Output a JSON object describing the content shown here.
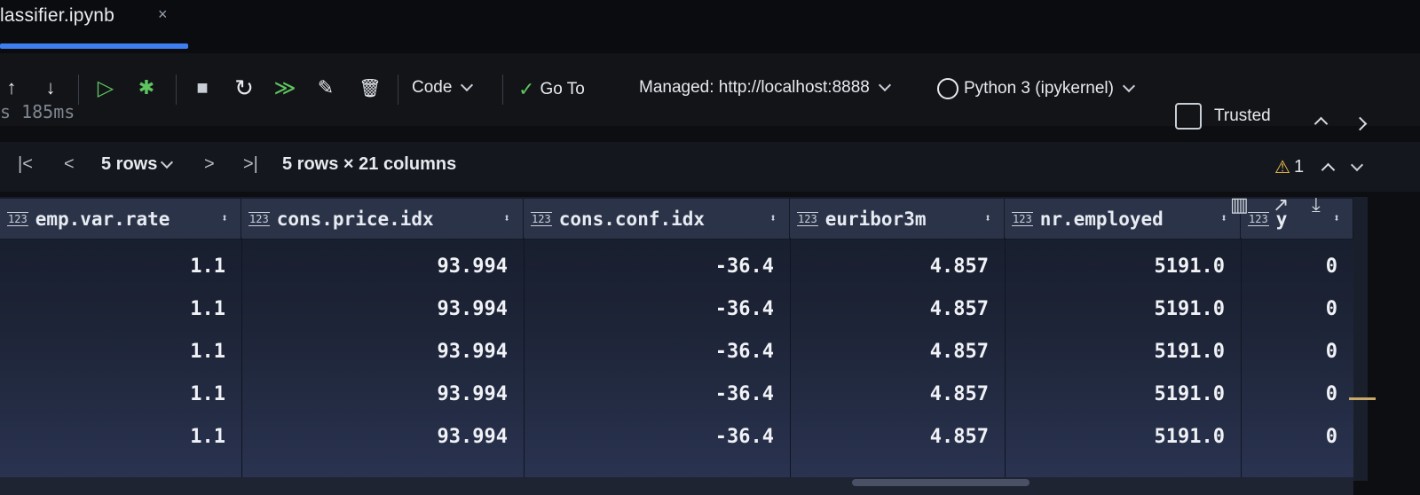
{
  "tab": {
    "title": "lassifier.ipynb",
    "close": "×"
  },
  "toolbar": {
    "icons": {
      "move_up": "↑",
      "move_down": "↓",
      "run_debug": "▷",
      "bug": "✱",
      "stop": "■",
      "restart": "↻",
      "run_all": "≫",
      "clear": "✎",
      "delete": "🗑"
    },
    "cell_type": "Code",
    "goto_check": "✓",
    "goto": "Go To",
    "server": "Managed: http://localhost:8888",
    "kernel": "Python 3 (ipykernel)",
    "trusted": "Trusted"
  },
  "exec_time": "s 185ms",
  "pager": {
    "first": "|<",
    "prev": "<",
    "rows_select": "5 rows",
    "next": ">",
    "last": ">|",
    "summary": "5 rows × 21 columns",
    "warning_icon": "⚠",
    "warning_count": "1"
  },
  "result_icons": {
    "chart": "▥",
    "open": "↗",
    "download": "⤓"
  },
  "table": {
    "type_badge": "123",
    "sort_icon": "⬍",
    "columns": [
      "emp.var.rate",
      "cons.price.idx",
      "cons.conf.idx",
      "euribor3m",
      "nr.employed",
      "y"
    ],
    "rows": [
      [
        "1.1",
        "93.994",
        "-36.4",
        "4.857",
        "5191.0",
        "0"
      ],
      [
        "1.1",
        "93.994",
        "-36.4",
        "4.857",
        "5191.0",
        "0"
      ],
      [
        "1.1",
        "93.994",
        "-36.4",
        "4.857",
        "5191.0",
        "0"
      ],
      [
        "1.1",
        "93.994",
        "-36.4",
        "4.857",
        "5191.0",
        "0"
      ],
      [
        "1.1",
        "93.994",
        "-36.4",
        "4.857",
        "5191.0",
        "0"
      ]
    ]
  },
  "colors": {
    "accent": "#3d7ff0",
    "run_green": "#5fc35f",
    "warning": "#f0c24a"
  }
}
